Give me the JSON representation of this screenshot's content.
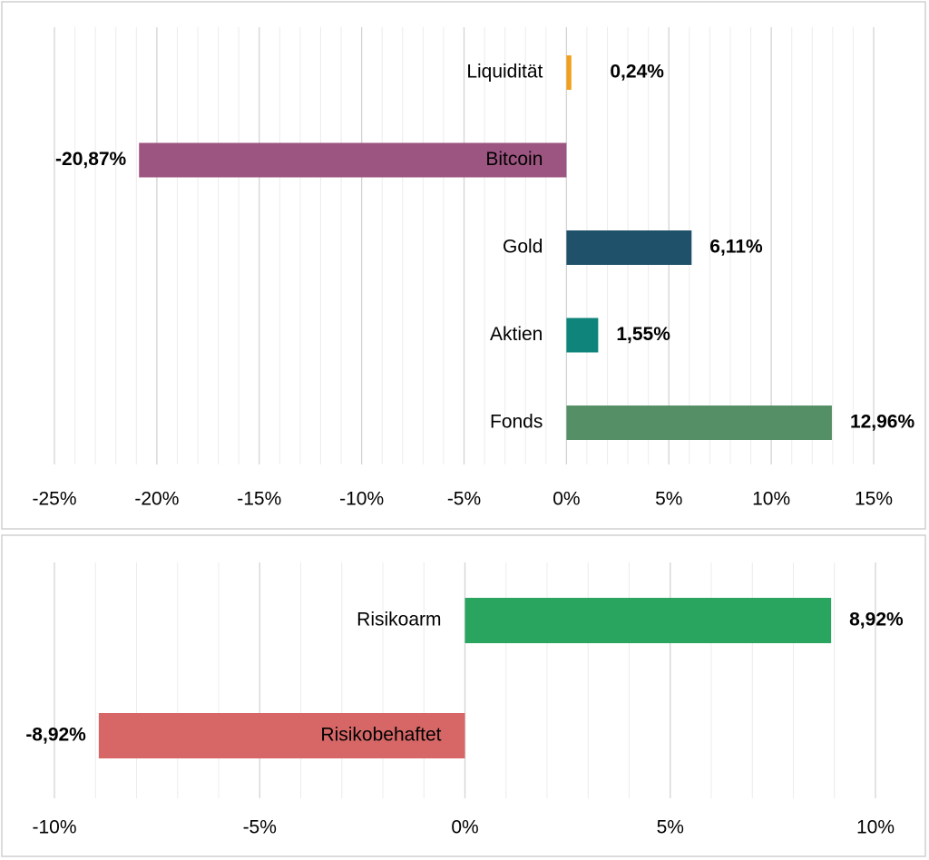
{
  "chart_data": [
    {
      "type": "bar",
      "orientation": "horizontal",
      "categories": [
        "Liquidität",
        "Bitcoin",
        "Gold",
        "Aktien",
        "Fonds"
      ],
      "values": [
        0.24,
        -20.87,
        6.11,
        1.55,
        12.96
      ],
      "value_labels": [
        "0,24%",
        "-20,87%",
        "6,11%",
        "1,55%",
        "12,96%"
      ],
      "colors": [
        "#f0a020",
        "#9c5580",
        "#1f516b",
        "#0e847a",
        "#558f66"
      ],
      "xlim": [
        -25,
        15
      ],
      "xticks": [
        {
          "value": -25,
          "label": "-25%"
        },
        {
          "value": -20,
          "label": "-20%"
        },
        {
          "value": -15,
          "label": "-15%"
        },
        {
          "value": -10,
          "label": "-10%"
        },
        {
          "value": -5,
          "label": "-5%"
        },
        {
          "value": 0,
          "label": "0%"
        },
        {
          "value": 5,
          "label": "5%"
        },
        {
          "value": 10,
          "label": "10%"
        },
        {
          "value": 15,
          "label": "15%"
        }
      ],
      "grid": true
    },
    {
      "type": "bar",
      "orientation": "horizontal",
      "categories": [
        "Risikoarm",
        "Risikobehaftet"
      ],
      "values": [
        8.92,
        -8.92
      ],
      "value_labels": [
        "8,92%",
        "-8,92%"
      ],
      "colors": [
        "#2aa55f",
        "#d76767"
      ],
      "xlim": [
        -10,
        10
      ],
      "xticks": [
        {
          "value": -10,
          "label": "-10%"
        },
        {
          "value": -5,
          "label": "-5%"
        },
        {
          "value": 0,
          "label": "0%"
        },
        {
          "value": 5,
          "label": "5%"
        },
        {
          "value": 10,
          "label": "10%"
        }
      ],
      "grid": true
    }
  ]
}
